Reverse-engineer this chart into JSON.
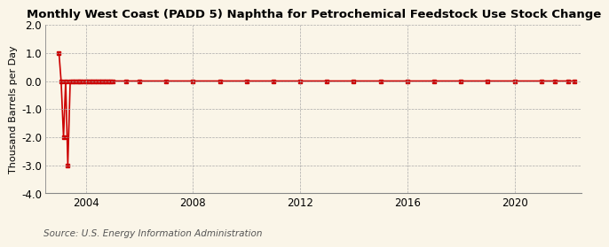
{
  "title": "Monthly West Coast (PADD 5) Naphtha for Petrochemical Feedstock Use Stock Change",
  "ylabel": "Thousand Barrels per Day",
  "source": "Source: U.S. Energy Information Administration",
  "background_color": "#faf5e8",
  "plot_bg_color": "#faf5e8",
  "line_color": "#cc0000",
  "ylim": [
    -4.0,
    2.0
  ],
  "yticks": [
    -4.0,
    -3.0,
    -2.0,
    -1.0,
    0.0,
    1.0,
    2.0
  ],
  "xlim_start": 2002.5,
  "xlim_end": 2022.5,
  "xticks": [
    2004,
    2008,
    2012,
    2016,
    2020
  ],
  "data_points": [
    [
      2003.0,
      1.0
    ],
    [
      2003.08,
      0.0
    ],
    [
      2003.17,
      -2.0
    ],
    [
      2003.25,
      0.0
    ],
    [
      2003.33,
      -3.0
    ],
    [
      2003.42,
      0.0
    ],
    [
      2003.5,
      0.0
    ],
    [
      2003.58,
      0.0
    ],
    [
      2003.67,
      0.0
    ],
    [
      2003.75,
      0.0
    ],
    [
      2003.83,
      0.0
    ],
    [
      2003.92,
      0.0
    ],
    [
      2004.0,
      0.0
    ],
    [
      2004.08,
      0.0
    ],
    [
      2004.17,
      0.0
    ],
    [
      2004.25,
      0.0
    ],
    [
      2004.33,
      0.0
    ],
    [
      2004.42,
      0.0
    ],
    [
      2004.5,
      0.0
    ],
    [
      2004.58,
      0.0
    ],
    [
      2004.67,
      0.0
    ],
    [
      2004.75,
      0.0
    ],
    [
      2004.83,
      0.0
    ],
    [
      2004.92,
      0.0
    ],
    [
      2005.0,
      0.0
    ],
    [
      2005.5,
      0.0
    ],
    [
      2006.0,
      0.0
    ],
    [
      2007.0,
      0.0
    ],
    [
      2008.0,
      0.0
    ],
    [
      2009.0,
      0.0
    ],
    [
      2010.0,
      0.0
    ],
    [
      2011.0,
      0.0
    ],
    [
      2012.0,
      0.0
    ],
    [
      2013.0,
      0.0
    ],
    [
      2014.0,
      0.0
    ],
    [
      2015.0,
      0.0
    ],
    [
      2016.0,
      0.0
    ],
    [
      2017.0,
      0.0
    ],
    [
      2018.0,
      0.0
    ],
    [
      2019.0,
      0.0
    ],
    [
      2020.0,
      0.0
    ],
    [
      2021.0,
      0.0
    ],
    [
      2021.5,
      0.0
    ],
    [
      2022.0,
      0.0
    ],
    [
      2022.25,
      0.0
    ]
  ],
  "title_fontsize": 9.5,
  "tick_fontsize": 8.5,
  "ylabel_fontsize": 8,
  "source_fontsize": 7.5
}
